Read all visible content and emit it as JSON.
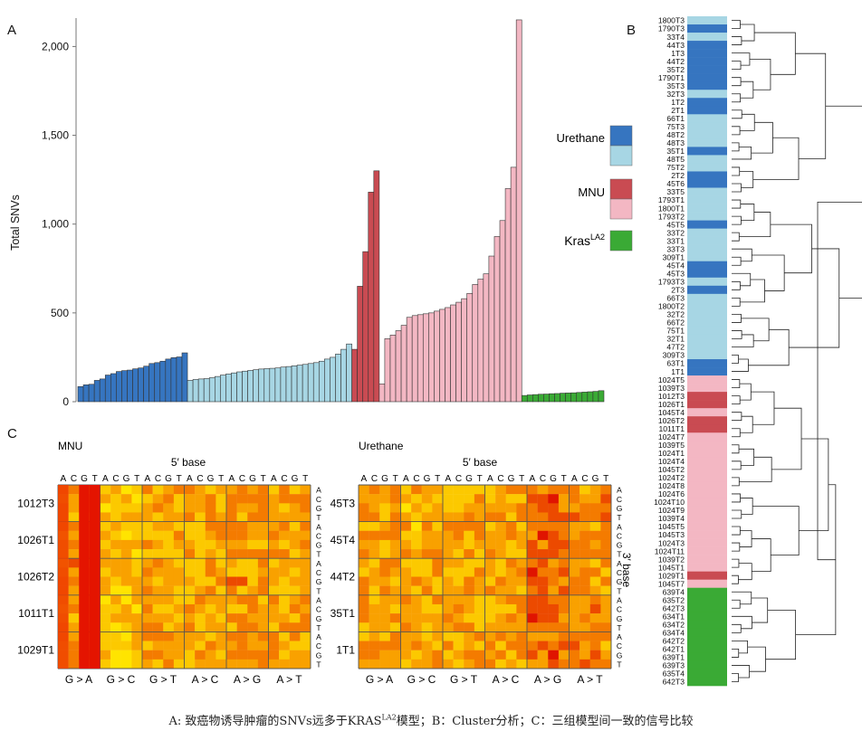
{
  "panels": {
    "a": "A",
    "b": "B",
    "c": "C"
  },
  "colors": {
    "urethane_dark": "#3675c0",
    "urethane_light": "#a7d6e4",
    "mnu_dark": "#c94b52",
    "mnu_light": "#f3b7c3",
    "kras": "#3aaa35"
  },
  "legend": [
    {
      "name": "Urethane",
      "dark": "#3675c0",
      "light": "#a7d6e4"
    },
    {
      "name": "MNU",
      "dark": "#c94b52",
      "light": "#f3b7c3"
    },
    {
      "name": "Kras",
      "sup": "LA2",
      "dark": "#3aaa35",
      "light": null
    }
  ],
  "chart_data": [
    {
      "panel": "A",
      "type": "bar",
      "ylabel": "Total SNVs",
      "ylim": [
        0,
        2200
      ],
      "yticks": [
        0,
        500,
        1000,
        1500,
        2000
      ],
      "ytick_labels": [
        "0",
        "500",
        "1,000",
        "1,500",
        "2,000"
      ],
      "groups": [
        {
          "group": "Urethane",
          "shade": "dark",
          "values": [
            85,
            95,
            98,
            120,
            128,
            150,
            158,
            170,
            175,
            178,
            185,
            190,
            200,
            215,
            220,
            228,
            240,
            248,
            252,
            275
          ]
        },
        {
          "group": "Urethane",
          "shade": "light",
          "values": [
            120,
            125,
            128,
            130,
            135,
            142,
            150,
            156,
            162,
            168,
            172,
            176,
            180,
            184,
            186,
            188,
            190,
            195,
            198,
            202,
            206,
            210,
            215,
            220,
            228,
            240,
            250,
            268,
            295,
            325
          ]
        },
        {
          "group": "MNU",
          "shade": "dark",
          "values": [
            295,
            650,
            845,
            1180,
            1300
          ]
        },
        {
          "group": "MNU",
          "shade": "light",
          "values": [
            100,
            355,
            375,
            400,
            430,
            475,
            485,
            490,
            495,
            500,
            510,
            520,
            530,
            545,
            560,
            580,
            610,
            660,
            690,
            720,
            820,
            930,
            1020,
            1200,
            1320,
            2150
          ]
        },
        {
          "group": "Kras",
          "shade": "single",
          "values": [
            35,
            38,
            40,
            42,
            43,
            45,
            46,
            48,
            49,
            50,
            52,
            54,
            56,
            58,
            62
          ]
        }
      ]
    },
    {
      "panel": "B",
      "type": "dendrogram",
      "leaves": [
        {
          "label": "1800T3",
          "c": "UL"
        },
        {
          "label": "1790T3",
          "c": "UD"
        },
        {
          "label": "33T4",
          "c": "UL"
        },
        {
          "label": "44T3",
          "c": "UD"
        },
        {
          "label": "1T3",
          "c": "UD"
        },
        {
          "label": "44T2",
          "c": "UD"
        },
        {
          "label": "35T2",
          "c": "UD"
        },
        {
          "label": "1790T1",
          "c": "UD"
        },
        {
          "label": "35T3",
          "c": "UD"
        },
        {
          "label": "32T3",
          "c": "UL"
        },
        {
          "label": "1T2",
          "c": "UD"
        },
        {
          "label": "2T1",
          "c": "UD"
        },
        {
          "label": "66T1",
          "c": "UL"
        },
        {
          "label": "75T3",
          "c": "UL"
        },
        {
          "label": "48T2",
          "c": "UL"
        },
        {
          "label": "48T3",
          "c": "UL"
        },
        {
          "label": "35T1",
          "c": "UD"
        },
        {
          "label": "48T5",
          "c": "UL"
        },
        {
          "label": "75T2",
          "c": "UL"
        },
        {
          "label": "2T2",
          "c": "UD"
        },
        {
          "label": "45T6",
          "c": "UD"
        },
        {
          "label": "33T5",
          "c": "UL"
        },
        {
          "label": "1793T1",
          "c": "UL"
        },
        {
          "label": "1800T1",
          "c": "UL"
        },
        {
          "label": "1793T2",
          "c": "UL"
        },
        {
          "label": "45T5",
          "c": "UD"
        },
        {
          "label": "33T2",
          "c": "UL"
        },
        {
          "label": "33T1",
          "c": "UL"
        },
        {
          "label": "33T3",
          "c": "UL"
        },
        {
          "label": "309T1",
          "c": "UL"
        },
        {
          "label": "45T4",
          "c": "UD"
        },
        {
          "label": "45T3",
          "c": "UD"
        },
        {
          "label": "1793T3",
          "c": "UL"
        },
        {
          "label": "2T3",
          "c": "UD"
        },
        {
          "label": "66T3",
          "c": "UL"
        },
        {
          "label": "1800T2",
          "c": "UL"
        },
        {
          "label": "32T2",
          "c": "UL"
        },
        {
          "label": "66T2",
          "c": "UL"
        },
        {
          "label": "75T1",
          "c": "UL"
        },
        {
          "label": "32T1",
          "c": "UL"
        },
        {
          "label": "47T2",
          "c": "UL"
        },
        {
          "label": "309T3",
          "c": "UL"
        },
        {
          "label": "63T1",
          "c": "UD"
        },
        {
          "label": "1T1",
          "c": "UD"
        },
        {
          "label": "1024T5",
          "c": "ML"
        },
        {
          "label": "1039T3",
          "c": "ML"
        },
        {
          "label": "1012T3",
          "c": "MD"
        },
        {
          "label": "1026T1",
          "c": "MD"
        },
        {
          "label": "1045T4",
          "c": "ML"
        },
        {
          "label": "1026T2",
          "c": "MD"
        },
        {
          "label": "1011T1",
          "c": "MD"
        },
        {
          "label": "1024T7",
          "c": "ML"
        },
        {
          "label": "1039T5",
          "c": "ML"
        },
        {
          "label": "1024T1",
          "c": "ML"
        },
        {
          "label": "1024T4",
          "c": "ML"
        },
        {
          "label": "1045T2",
          "c": "ML"
        },
        {
          "label": "1024T2",
          "c": "ML"
        },
        {
          "label": "1024T8",
          "c": "ML"
        },
        {
          "label": "1024T6",
          "c": "ML"
        },
        {
          "label": "1024T10",
          "c": "ML"
        },
        {
          "label": "1024T9",
          "c": "ML"
        },
        {
          "label": "1039T4",
          "c": "ML"
        },
        {
          "label": "1045T5",
          "c": "ML"
        },
        {
          "label": "1045T3",
          "c": "ML"
        },
        {
          "label": "1024T3",
          "c": "ML"
        },
        {
          "label": "1024T11",
          "c": "ML"
        },
        {
          "label": "1039T2",
          "c": "ML"
        },
        {
          "label": "1045T1",
          "c": "ML"
        },
        {
          "label": "1029T1",
          "c": "MD"
        },
        {
          "label": "1045T7",
          "c": "ML"
        },
        {
          "label": "639T4",
          "c": "K"
        },
        {
          "label": "635T2",
          "c": "K"
        },
        {
          "label": "642T3",
          "c": "K"
        },
        {
          "label": "634T1",
          "c": "K"
        },
        {
          "label": "634T2",
          "c": "K"
        },
        {
          "label": "634T4",
          "c": "K"
        },
        {
          "label": "642T2",
          "c": "K"
        },
        {
          "label": "642T1",
          "c": "K"
        },
        {
          "label": "639T1",
          "c": "K"
        },
        {
          "label": "639T3",
          "c": "K"
        },
        {
          "label": "635T4",
          "c": "K"
        },
        {
          "label": "642T3",
          "c": "K"
        }
      ]
    },
    {
      "panel": "C",
      "type": "heatmap",
      "panels": [
        {
          "title": "MNU",
          "rows": [
            "1012T3",
            "1026T1",
            "1026T2",
            "1011T1",
            "1029T1"
          ]
        },
        {
          "title": "Urethane",
          "rows": [
            "45T3",
            "45T4",
            "44T2",
            "35T1",
            "1T1"
          ]
        }
      ],
      "top_label": "5′ base",
      "right_label": "3′ base",
      "base_letters": [
        "A",
        "C",
        "G",
        "T"
      ],
      "mutation_types": [
        "G > A",
        "G > C",
        "G > T",
        "A > C",
        "A > G",
        "A > T"
      ],
      "urethane_mutation_types": [
        "G > A",
        "G > C",
        "G > T",
        "A > C",
        "A > G",
        "A > T"
      ]
    }
  ],
  "caption": {
    "pre": "A: 致癌物诱导肿瘤的SNVs远多于KRAS",
    "sup": "LA2",
    "post": "模型；B：Cluster分析；C：三组模型间一致的信号比较"
  }
}
